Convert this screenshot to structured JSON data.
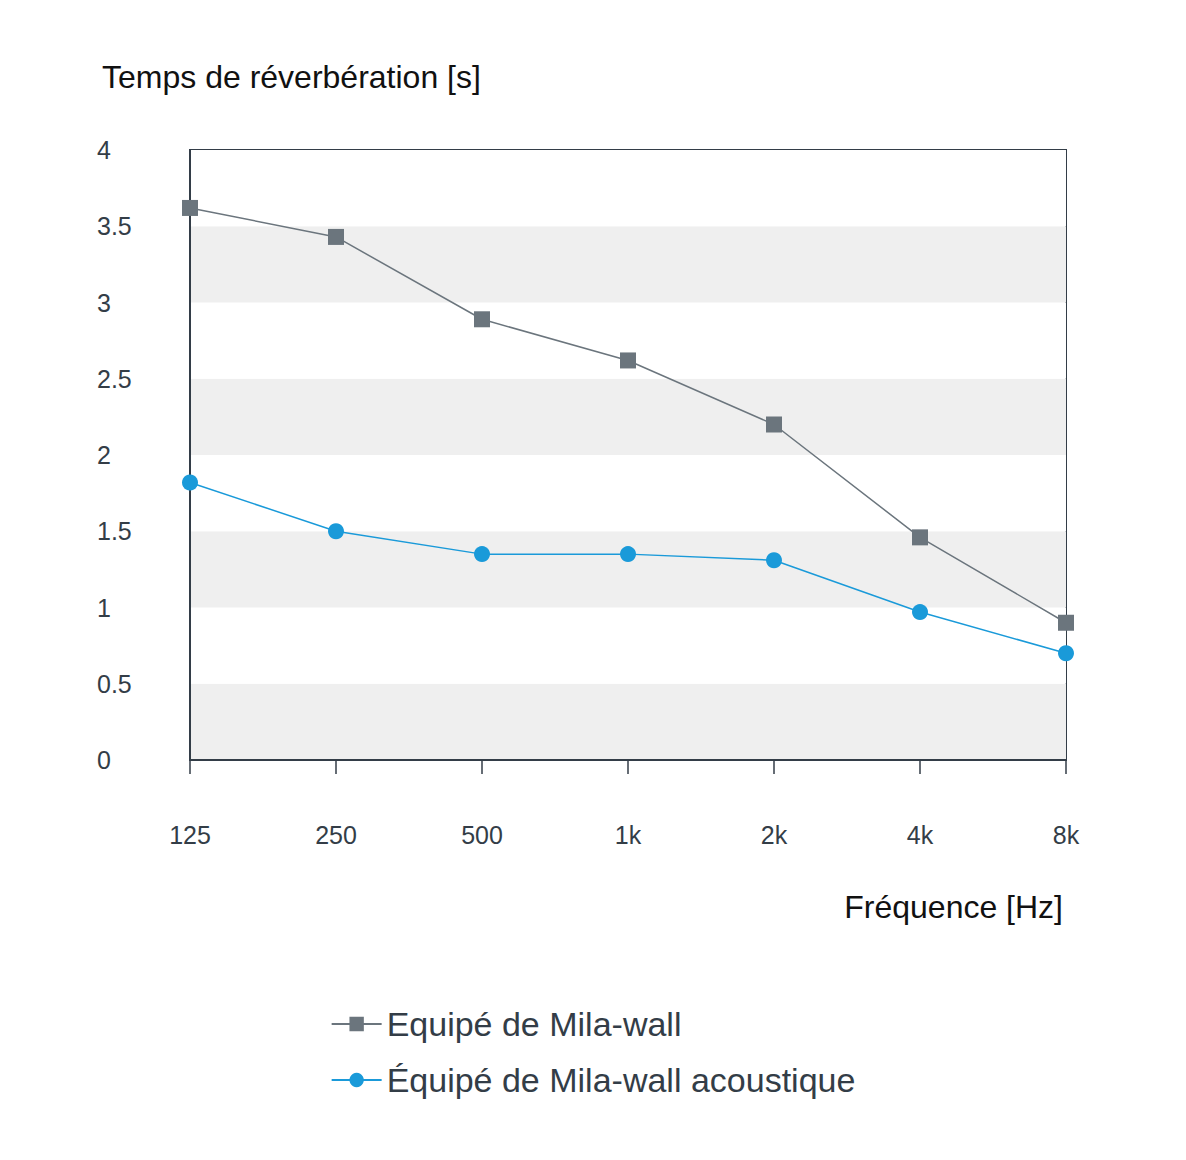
{
  "chart_data": {
    "type": "line",
    "ylabel": "Temps de réverbération [s]",
    "xlabel": "Fréquence [Hz]",
    "categories": [
      "125",
      "250",
      "500",
      "1k",
      "2k",
      "4k",
      "8k"
    ],
    "series": [
      {
        "name": "Equipé de Mila-wall",
        "color": "#6b757d",
        "marker": "square",
        "values": [
          3.62,
          3.43,
          2.89,
          2.62,
          2.2,
          1.46,
          0.9
        ]
      },
      {
        "name": "Équipé de Mila-wall acoustique",
        "color": "#1a9ad9",
        "marker": "circle",
        "values": [
          1.82,
          1.5,
          1.35,
          1.35,
          1.31,
          0.97,
          0.7
        ]
      }
    ],
    "ylim": [
      0,
      4
    ],
    "yticks": [
      0,
      0.5,
      1,
      1.5,
      2,
      2.5,
      3,
      3.5,
      4
    ],
    "grid": true,
    "legend": "bottom"
  }
}
